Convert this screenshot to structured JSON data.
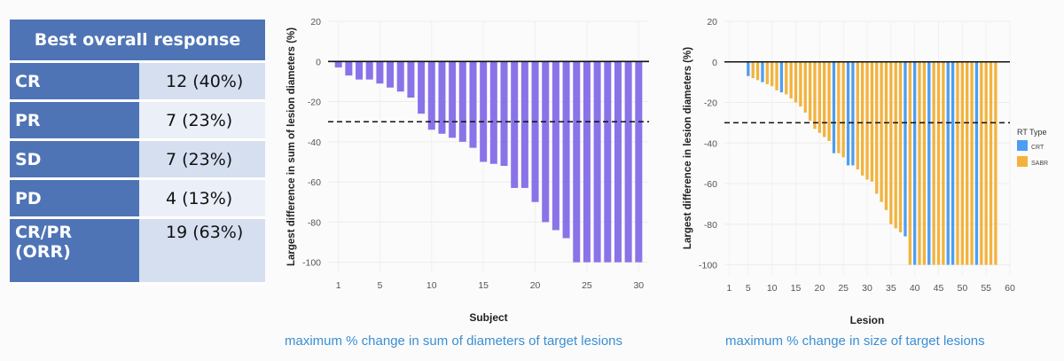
{
  "table": {
    "header": "Best overall response",
    "rows": [
      {
        "label": "CR",
        "value": "12 (40%)"
      },
      {
        "label": "PR",
        "value": "7 (23%)"
      },
      {
        "label": "SD",
        "value": "7 (23%)"
      },
      {
        "label": "PD",
        "value": "4 (13%)"
      },
      {
        "label": "CR/PR",
        "label2": "(ORR)",
        "value": "19 (63%)"
      }
    ]
  },
  "captions": {
    "left": "maximum % change in sum of diameters of target lesions",
    "right": "maximum % change in size of target lesions"
  },
  "colors": {
    "purple": "#8a73e8",
    "crt": "#4d9ef0",
    "sabr": "#f2b33d",
    "table_blue": "#4f74b6",
    "caption": "#3a8fd4"
  },
  "chart_data": [
    {
      "type": "bar",
      "xlabel": "Subject",
      "ylabel": "Largest difference in sum of lesion diameters (%)",
      "xlim": [
        0,
        31
      ],
      "ylim": [
        -105,
        20
      ],
      "yticks": [
        20,
        0,
        -20,
        -40,
        -60,
        -80,
        -100
      ],
      "xticks": [
        1,
        5,
        10,
        15,
        20,
        25,
        30
      ],
      "reference_line": -30,
      "x": [
        1,
        2,
        3,
        4,
        5,
        6,
        7,
        8,
        9,
        10,
        11,
        12,
        13,
        14,
        15,
        16,
        17,
        18,
        19,
        20,
        21,
        22,
        23,
        24,
        25,
        26,
        27,
        28,
        29,
        30
      ],
      "values": [
        -3,
        -7,
        -9,
        -9,
        -11,
        -13,
        -15,
        -18,
        -26,
        -34,
        -36,
        -38,
        -40,
        -43,
        -50,
        -51,
        -52,
        -63,
        -63,
        -70,
        -80,
        -84,
        -88,
        -100,
        -100,
        -100,
        -100,
        -100,
        -100,
        -100
      ]
    },
    {
      "type": "bar",
      "xlabel": "Lesion",
      "ylabel": "Largest difference in lesion diameters (%)",
      "xlim": [
        0,
        60
      ],
      "ylim": [
        -105,
        20
      ],
      "yticks": [
        20,
        0,
        -20,
        -40,
        -60,
        -80,
        -100
      ],
      "xticks": [
        1,
        5,
        10,
        15,
        20,
        25,
        30,
        35,
        40,
        45,
        50,
        55,
        60
      ],
      "reference_line": -30,
      "legend": {
        "title": "RT Type",
        "position": "right",
        "entries": [
          "CRT",
          "SABR"
        ]
      },
      "x": [
        5,
        6,
        7,
        8,
        9,
        10,
        11,
        12,
        13,
        14,
        15,
        16,
        17,
        18,
        19,
        20,
        21,
        22,
        23,
        24,
        25,
        26,
        27,
        28,
        29,
        30,
        31,
        32,
        33,
        34,
        35,
        36,
        37,
        38,
        39,
        40,
        41,
        42,
        43,
        44,
        45,
        46,
        47,
        48,
        49,
        50,
        51,
        52,
        53,
        54,
        55,
        56,
        57
      ],
      "values": [
        -7,
        -8,
        -9,
        -10,
        -11,
        -12,
        -14,
        -15,
        -16,
        -18,
        -20,
        -22,
        -25,
        -29,
        -33,
        -35,
        -37,
        -39,
        -45,
        -45,
        -47,
        -51,
        -51,
        -53,
        -56,
        -58,
        -59,
        -65,
        -69,
        -73,
        -80,
        -82,
        -84,
        -86,
        -100,
        -100,
        -100,
        -100,
        -100,
        -100,
        -100,
        -100,
        -100,
        -100,
        -100,
        -100,
        -100,
        -100,
        -100,
        -100,
        -100,
        -100,
        -100
      ],
      "series_type": [
        "CRT",
        "SABR",
        "SABR",
        "CRT",
        "SABR",
        "SABR",
        "SABR",
        "CRT",
        "SABR",
        "SABR",
        "SABR",
        "SABR",
        "SABR",
        "SABR",
        "SABR",
        "SABR",
        "SABR",
        "SABR",
        "CRT",
        "SABR",
        "SABR",
        "CRT",
        "CRT",
        "SABR",
        "SABR",
        "SABR",
        "SABR",
        "SABR",
        "SABR",
        "SABR",
        "SABR",
        "SABR",
        "SABR",
        "CRT",
        "SABR",
        "CRT",
        "SABR",
        "SABR",
        "CRT",
        "SABR",
        "SABR",
        "SABR",
        "CRT",
        "CRT",
        "SABR",
        "SABR",
        "SABR",
        "SABR",
        "CRT",
        "SABR",
        "SABR",
        "SABR",
        "SABR"
      ]
    }
  ]
}
